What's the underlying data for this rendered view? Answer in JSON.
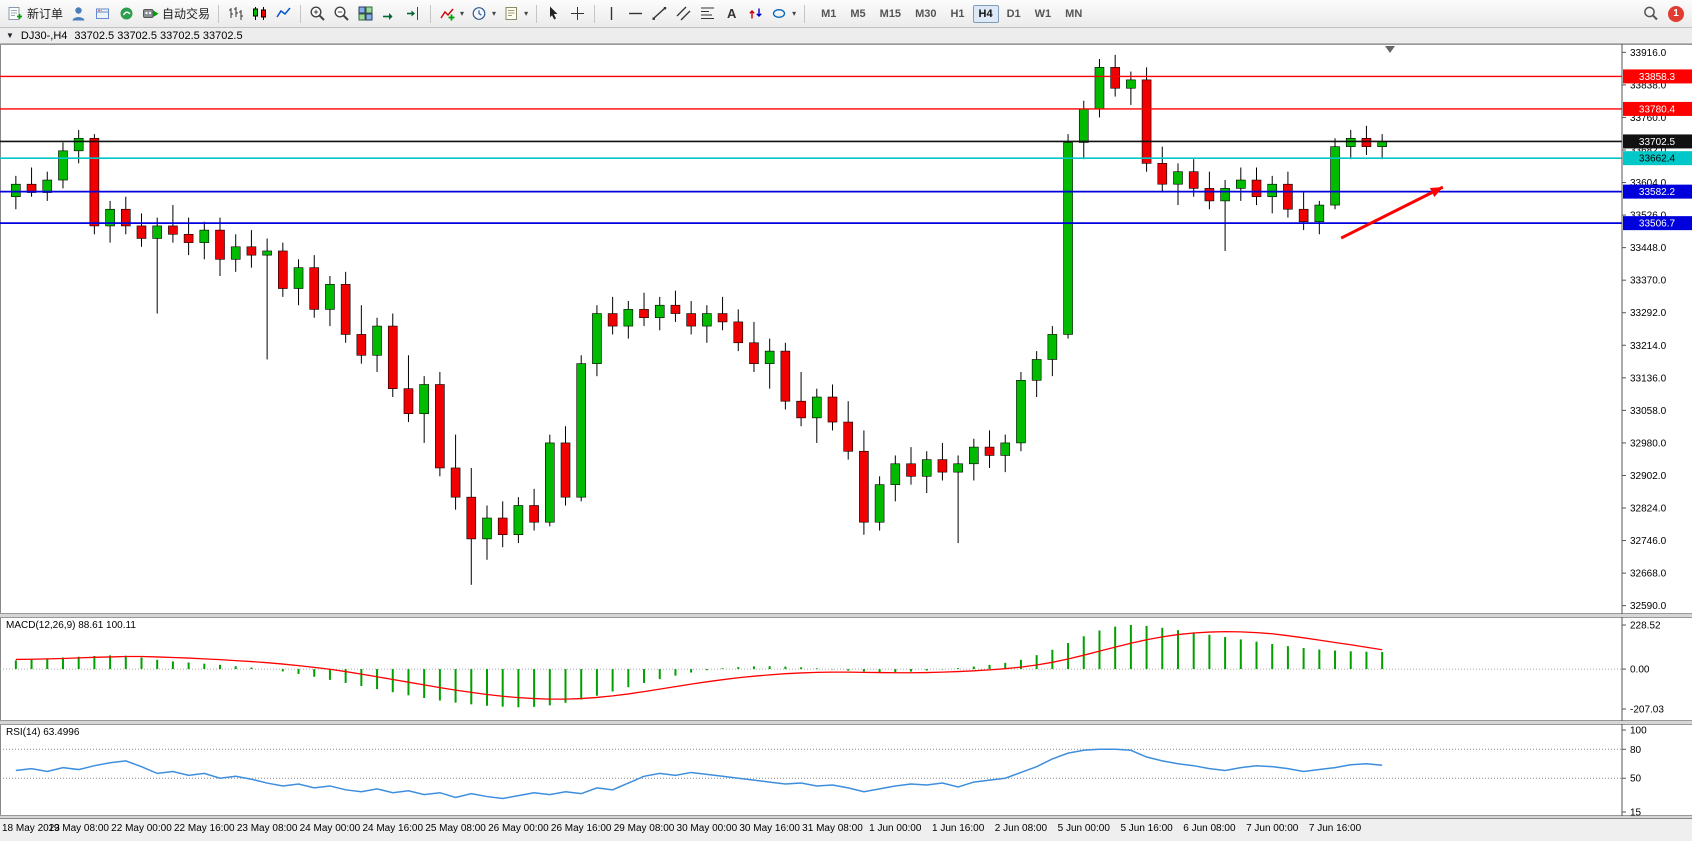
{
  "toolbar": {
    "new_order_label": "新订单",
    "autotrade_label": "自动交易",
    "timeframes": [
      "M1",
      "M5",
      "M15",
      "M30",
      "H1",
      "H4",
      "D1",
      "W1",
      "MN"
    ],
    "active_timeframe": "H4",
    "notification_count": "1",
    "icons": [
      "new-order-icon",
      "profile-icon",
      "market-icon",
      "community-icon",
      "autotrading-icon",
      "bars-chart-icon",
      "candlestick-chart-icon",
      "line-chart-icon",
      "zoom-in-icon",
      "zoom-out-icon",
      "tile-windows-icon",
      "auto-scroll-icon",
      "chart-shift-icon",
      "indicators-icon",
      "periods-icon",
      "templates-icon",
      "cursor-icon",
      "crosshair-icon",
      "vertical-line-icon",
      "horizontal-line-icon",
      "trendline-icon",
      "channel-icon",
      "fibonacci-icon",
      "text-icon",
      "arrows-icon",
      "shapes-icon",
      "search-icon",
      "notification-badge"
    ]
  },
  "chart": {
    "title": "DJ30-,H4",
    "ohlc": "33702.5 33702.5 33702.5 33702.5"
  },
  "chart_data": {
    "type": "candlestick",
    "symbol": "DJ30-",
    "timeframe": "H4",
    "colors": {
      "bull": "#00BB00",
      "bear": "#F00000",
      "macd_hist": "#00A000",
      "macd_signal": "#FF0000",
      "rsi_line": "#3E8EDE",
      "axis": "#555555"
    },
    "price_axis_ticks": [
      33916,
      33838,
      33760,
      33682,
      33604,
      33526,
      33448,
      33370,
      33292,
      33214,
      33136,
      33058,
      32980,
      32902,
      32824,
      32746,
      32668,
      32590
    ],
    "hlines": [
      {
        "price": 33858.3,
        "label": "33858.3",
        "color": "#FF0000",
        "text": "#FFFFFF",
        "width": 1.4
      },
      {
        "price": 33780.4,
        "label": "33780.4",
        "color": "#FF0000",
        "text": "#FFFFFF",
        "width": 1.4
      },
      {
        "price": 33702.5,
        "label": "33702.5",
        "color": "#111111",
        "text": "#FFFFFF",
        "width": 1.6
      },
      {
        "price": 33662.4,
        "label": "33662.4",
        "color": "#00C8C8",
        "text": "#000000",
        "width": 1.6
      },
      {
        "price": 33582.2,
        "label": "33582.2",
        "color": "#0000DD",
        "text": "#FFFFFF",
        "width": 1.8
      },
      {
        "price": 33506.7,
        "label": "33506.7",
        "color": "#0000DD",
        "text": "#FFFFFF",
        "width": 1.8
      }
    ],
    "arrow": {
      "tail_x_frac": 0.826,
      "tail_price": 33471,
      "tip_x_frac": 0.889,
      "tip_price": 33593,
      "color": "#FF0000"
    },
    "x_labels": [
      "18 May 2023",
      "19 May 08:00",
      "22 May 00:00",
      "22 May 16:00",
      "23 May 08:00",
      "24 May 00:00",
      "24 May 16:00",
      "25 May 08:00",
      "26 May 00:00",
      "26 May 16:00",
      "29 May 08:00",
      "30 May 00:00",
      "30 May 16:00",
      "31 May 08:00",
      "1 Jun 00:00",
      "1 Jun 16:00",
      "2 Jun 08:00",
      "5 Jun 00:00",
      "5 Jun 16:00",
      "6 Jun 08:00",
      "7 Jun 00:00",
      "7 Jun 16:00"
    ],
    "candles": [
      [
        33570,
        33620,
        33540,
        33600
      ],
      [
        33600,
        33640,
        33570,
        33580
      ],
      [
        33580,
        33630,
        33560,
        33610
      ],
      [
        33610,
        33700,
        33590,
        33680
      ],
      [
        33680,
        33730,
        33650,
        33710
      ],
      [
        33710,
        33720,
        33480,
        33500
      ],
      [
        33500,
        33560,
        33460,
        33540
      ],
      [
        33540,
        33570,
        33480,
        33500
      ],
      [
        33500,
        33530,
        33450,
        33470
      ],
      [
        33470,
        33520,
        33290,
        33500
      ],
      [
        33500,
        33550,
        33460,
        33480
      ],
      [
        33480,
        33520,
        33430,
        33460
      ],
      [
        33460,
        33510,
        33420,
        33490
      ],
      [
        33490,
        33520,
        33380,
        33420
      ],
      [
        33420,
        33480,
        33390,
        33450
      ],
      [
        33450,
        33490,
        33400,
        33430
      ],
      [
        33430,
        33470,
        33180,
        33440
      ],
      [
        33440,
        33460,
        33330,
        33350
      ],
      [
        33350,
        33420,
        33310,
        33400
      ],
      [
        33400,
        33430,
        33280,
        33300
      ],
      [
        33300,
        33380,
        33260,
        33360
      ],
      [
        33360,
        33390,
        33220,
        33240
      ],
      [
        33240,
        33310,
        33170,
        33190
      ],
      [
        33190,
        33280,
        33150,
        33260
      ],
      [
        33260,
        33290,
        33090,
        33110
      ],
      [
        33110,
        33190,
        33030,
        33050
      ],
      [
        33050,
        33140,
        32980,
        33120
      ],
      [
        33120,
        33150,
        32900,
        32920
      ],
      [
        32920,
        33000,
        32820,
        32850
      ],
      [
        32850,
        32920,
        32640,
        32750
      ],
      [
        32750,
        32830,
        32700,
        32800
      ],
      [
        32800,
        32840,
        32730,
        32760
      ],
      [
        32760,
        32850,
        32740,
        32830
      ],
      [
        32830,
        32870,
        32770,
        32790
      ],
      [
        32790,
        33000,
        32780,
        32980
      ],
      [
        32980,
        33020,
        32830,
        32850
      ],
      [
        32850,
        33190,
        32840,
        33170
      ],
      [
        33170,
        33310,
        33140,
        33290
      ],
      [
        33290,
        33330,
        33240,
        33260
      ],
      [
        33260,
        33320,
        33230,
        33300
      ],
      [
        33300,
        33340,
        33260,
        33280
      ],
      [
        33280,
        33330,
        33250,
        33310
      ],
      [
        33310,
        33345,
        33270,
        33290
      ],
      [
        33290,
        33320,
        33240,
        33260
      ],
      [
        33260,
        33310,
        33220,
        33290
      ],
      [
        33290,
        33330,
        33250,
        33270
      ],
      [
        33270,
        33300,
        33200,
        33220
      ],
      [
        33220,
        33270,
        33150,
        33170
      ],
      [
        33170,
        33230,
        33110,
        33200
      ],
      [
        33200,
        33220,
        33060,
        33080
      ],
      [
        33080,
        33150,
        33020,
        33040
      ],
      [
        33040,
        33110,
        32980,
        33090
      ],
      [
        33090,
        33120,
        33010,
        33030
      ],
      [
        33030,
        33080,
        32940,
        32960
      ],
      [
        32960,
        33010,
        32760,
        32790
      ],
      [
        32790,
        32900,
        32770,
        32880
      ],
      [
        32880,
        32950,
        32840,
        32930
      ],
      [
        32930,
        32970,
        32880,
        32900
      ],
      [
        32900,
        32960,
        32860,
        32940
      ],
      [
        32940,
        32980,
        32890,
        32910
      ],
      [
        32910,
        32950,
        32740,
        32930
      ],
      [
        32930,
        32990,
        32890,
        32970
      ],
      [
        32970,
        33010,
        32920,
        32950
      ],
      [
        32950,
        33000,
        32910,
        32980
      ],
      [
        32980,
        33150,
        32960,
        33130
      ],
      [
        33130,
        33200,
        33090,
        33180
      ],
      [
        33180,
        33260,
        33140,
        33240
      ],
      [
        33240,
        33720,
        33230,
        33700
      ],
      [
        33700,
        33800,
        33660,
        33780
      ],
      [
        33780,
        33900,
        33760,
        33880
      ],
      [
        33880,
        33910,
        33810,
        33830
      ],
      [
        33830,
        33870,
        33790,
        33850
      ],
      [
        33850,
        33880,
        33630,
        33650
      ],
      [
        33650,
        33690,
        33580,
        33600
      ],
      [
        33600,
        33650,
        33550,
        33630
      ],
      [
        33630,
        33660,
        33570,
        33590
      ],
      [
        33590,
        33630,
        33540,
        33560
      ],
      [
        33560,
        33610,
        33440,
        33590
      ],
      [
        33590,
        33640,
        33560,
        33610
      ],
      [
        33610,
        33640,
        33550,
        33570
      ],
      [
        33570,
        33620,
        33530,
        33600
      ],
      [
        33600,
        33630,
        33520,
        33540
      ],
      [
        33540,
        33580,
        33490,
        33510
      ],
      [
        33510,
        33560,
        33480,
        33550
      ],
      [
        33550,
        33710,
        33540,
        33690
      ],
      [
        33690,
        33730,
        33660,
        33710
      ],
      [
        33710,
        33740,
        33670,
        33690
      ],
      [
        33690,
        33720,
        33660,
        33702.5
      ]
    ],
    "macd": {
      "name": "MACD(12,26,9)",
      "values": "88.61 100.11",
      "scale_max": 228.52,
      "scale_min": -207.03,
      "histogram": [
        45,
        50,
        55,
        60,
        64,
        68,
        71,
        69,
        60,
        48,
        40,
        34,
        28,
        22,
        15,
        8,
        0,
        -12,
        -25,
        -40,
        -56,
        -72,
        -88,
        -104,
        -120,
        -136,
        -150,
        -163,
        -174,
        -183,
        -190,
        -195,
        -198,
        -196,
        -188,
        -175,
        -158,
        -138,
        -116,
        -94,
        -72,
        -52,
        -34,
        -18,
        -6,
        4,
        10,
        14,
        15,
        13,
        9,
        4,
        -2,
        -8,
        -13,
        -16,
        -16,
        -13,
        -8,
        -2,
        5,
        13,
        22,
        32,
        48,
        72,
        100,
        135,
        170,
        200,
        220,
        228.52,
        224,
        214,
        202,
        190,
        178,
        166,
        154,
        142,
        130,
        119,
        109,
        101,
        96,
        92,
        90,
        88.61
      ],
      "signal": [
        50,
        51,
        53,
        55,
        58,
        61,
        63,
        65,
        65,
        63,
        60,
        57,
        53,
        49,
        44,
        39,
        33,
        26,
        18,
        9,
        -1,
        -13,
        -26,
        -40,
        -54,
        -68,
        -82,
        -96,
        -109,
        -121,
        -132,
        -141,
        -148,
        -153,
        -156,
        -156,
        -153,
        -147,
        -139,
        -129,
        -117,
        -104,
        -91,
        -78,
        -66,
        -55,
        -45,
        -37,
        -30,
        -24,
        -20,
        -17,
        -16,
        -16,
        -17,
        -18,
        -19,
        -19,
        -18,
        -16,
        -13,
        -9,
        -4,
        2,
        10,
        21,
        35,
        52,
        72,
        93,
        114,
        134,
        152,
        167,
        179,
        187,
        192,
        194,
        193,
        189,
        183,
        173,
        162,
        150,
        138,
        126,
        113,
        100.11
      ]
    },
    "rsi": {
      "name": "RSI(14)",
      "values": "63.4996",
      "levels": [
        80,
        50
      ],
      "axis_values": [
        100,
        80,
        50,
        15
      ],
      "series": [
        58,
        60,
        57,
        61,
        59,
        63,
        66,
        68,
        62,
        55,
        57,
        53,
        55,
        50,
        52,
        49,
        45,
        42,
        44,
        40,
        42,
        38,
        36,
        39,
        35,
        37,
        33,
        35,
        30,
        34,
        31,
        29,
        32,
        35,
        33,
        36,
        34,
        40,
        38,
        45,
        52,
        55,
        53,
        56,
        54,
        52,
        50,
        48,
        46,
        44,
        45,
        42,
        43,
        40,
        36,
        39,
        42,
        44,
        43,
        45,
        41,
        46,
        48,
        50,
        56,
        62,
        70,
        76,
        79,
        80,
        80,
        79,
        72,
        68,
        65,
        63,
        60,
        58,
        61,
        63,
        62,
        60,
        57,
        59,
        61,
        64,
        65,
        63.5
      ]
    }
  }
}
